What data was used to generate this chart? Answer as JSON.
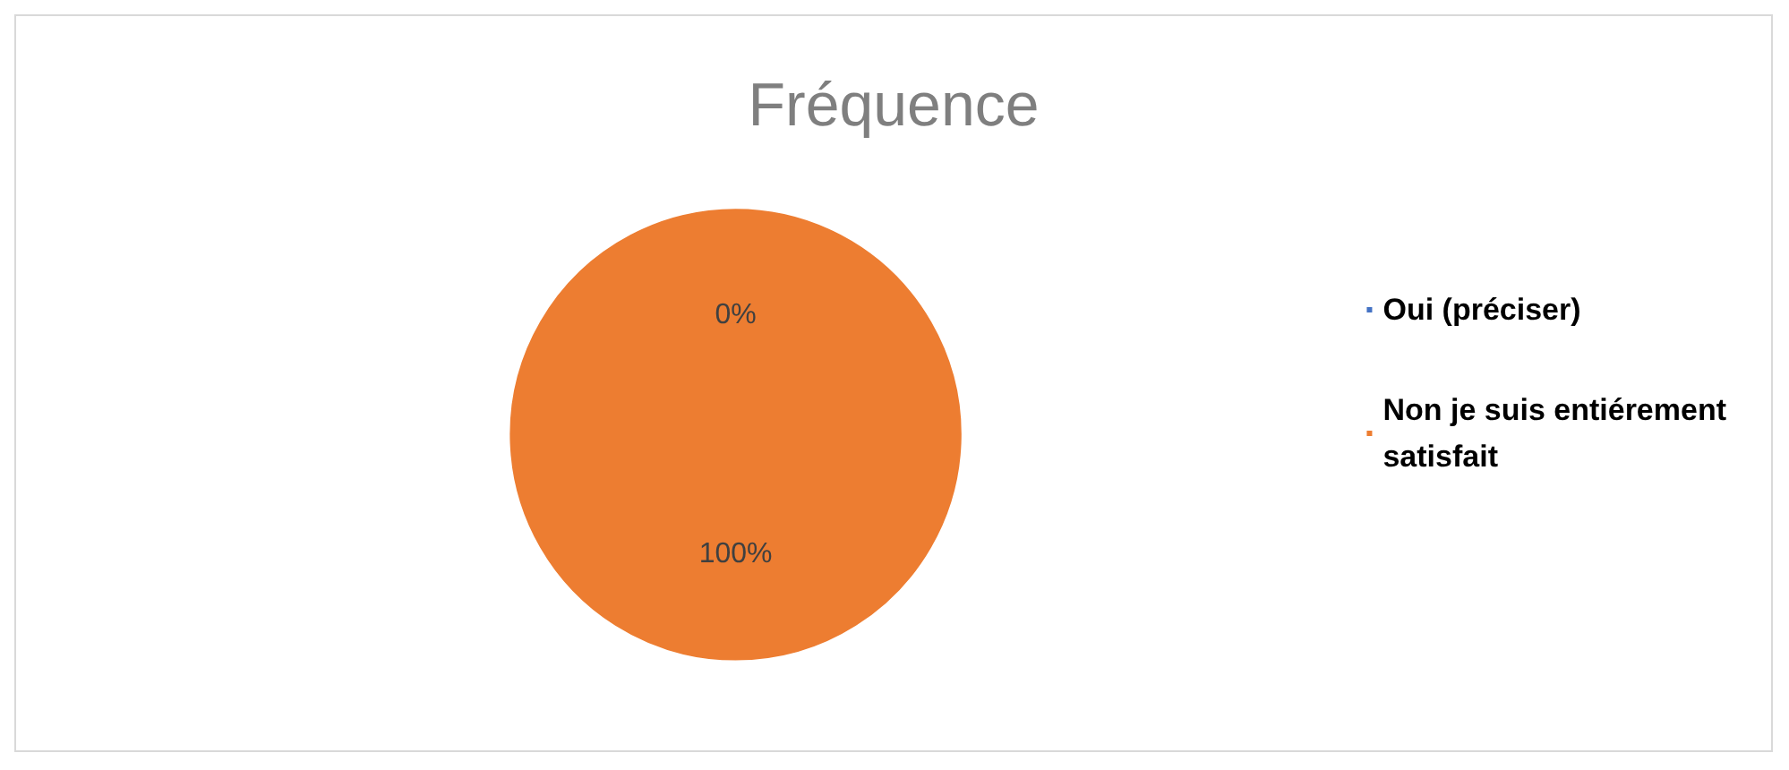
{
  "chart_data": {
    "type": "pie",
    "title": "Fréquence",
    "categories": [
      "Oui (préciser)",
      "Non je suis entiérement satisfait"
    ],
    "values": [
      0,
      100
    ],
    "colors": [
      "#4472c4",
      "#ed7d31"
    ],
    "value_labels": [
      "0%",
      "100%"
    ],
    "legend": "right"
  }
}
